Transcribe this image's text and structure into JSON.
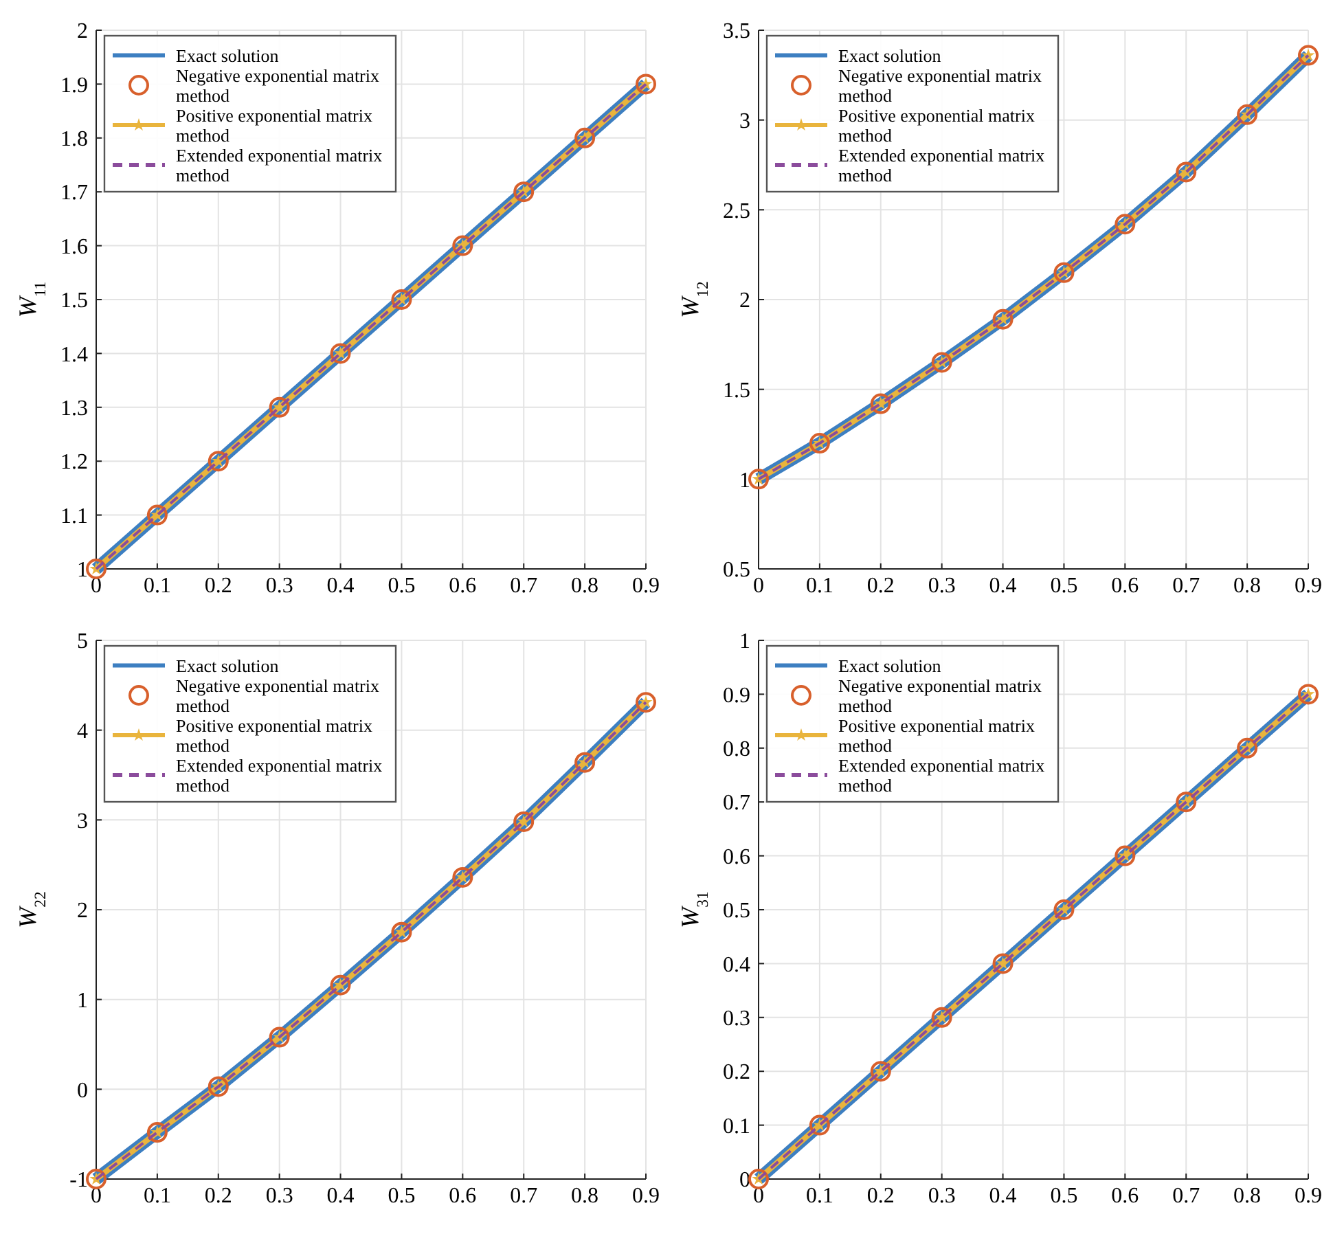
{
  "chart_data": [
    {
      "type": "line",
      "ylabel": "W$_{11}$",
      "x": [
        0,
        0.1,
        0.2,
        0.3,
        0.4,
        0.5,
        0.6,
        0.7,
        0.8,
        0.9
      ],
      "xlim": [
        0,
        0.9
      ],
      "xticks": [
        0,
        0.1,
        0.2,
        0.3,
        0.4,
        0.5,
        0.6,
        0.7,
        0.8,
        0.9
      ],
      "ylim": [
        1,
        2
      ],
      "yticks": [
        1,
        1.1,
        1.2,
        1.3,
        1.4,
        1.5,
        1.6,
        1.7,
        1.8,
        1.9,
        2
      ],
      "grid": true,
      "legend": "top left",
      "series": [
        {
          "name": "Exact solution",
          "color": "#3d7fc1",
          "line_style": "solid",
          "marker": "none",
          "values": [
            1,
            1.1,
            1.2,
            1.3,
            1.4,
            1.5,
            1.6,
            1.7,
            1.8,
            1.9
          ]
        },
        {
          "name": "Negative exponential matrix method",
          "type": "scatter",
          "color": "#d8602c",
          "marker": "circle",
          "values": [
            1,
            1.1,
            1.2,
            1.3,
            1.4,
            1.5,
            1.6,
            1.7,
            1.8,
            1.9
          ]
        },
        {
          "name": "Positive exponential matrix method",
          "type": "line",
          "color": "#e9b43c",
          "line_style": "solid",
          "marker": "star",
          "values": [
            1,
            1.1,
            1.2,
            1.3,
            1.4,
            1.5,
            1.6,
            1.7,
            1.8,
            1.9
          ]
        },
        {
          "name": "Extended exponential matrix method",
          "type": "line",
          "color": "#8b4c9c",
          "line_style": "dashed",
          "marker": "none",
          "values": [
            1,
            1.1,
            1.2,
            1.3,
            1.4,
            1.5,
            1.6,
            1.7,
            1.8,
            1.9
          ]
        }
      ]
    },
    {
      "type": "line",
      "ylabel": "W$_{12}$",
      "x": [
        0,
        0.1,
        0.2,
        0.3,
        0.4,
        0.5,
        0.6,
        0.7,
        0.8,
        0.9
      ],
      "xlim": [
        0,
        0.9
      ],
      "xticks": [
        0,
        0.1,
        0.2,
        0.3,
        0.4,
        0.5,
        0.6,
        0.7,
        0.8,
        0.9
      ],
      "ylim": [
        0.5,
        3.5
      ],
      "yticks": [
        0.5,
        1,
        1.5,
        2,
        2.5,
        3,
        3.5
      ],
      "grid": true,
      "legend": "top left",
      "series": [
        {
          "name": "Exact solution",
          "color": "#3d7fc1",
          "line_style": "solid",
          "marker": "none",
          "values": [
            1,
            1.2,
            1.42,
            1.65,
            1.89,
            2.15,
            2.42,
            2.71,
            3.03,
            3.36
          ]
        },
        {
          "name": "Negative exponential matrix method",
          "type": "scatter",
          "color": "#d8602c",
          "marker": "circle",
          "values": [
            1,
            1.2,
            1.42,
            1.65,
            1.89,
            2.15,
            2.42,
            2.71,
            3.03,
            3.36
          ]
        },
        {
          "name": "Positive exponential matrix method",
          "type": "line",
          "color": "#e9b43c",
          "line_style": "solid",
          "marker": "star",
          "values": [
            1,
            1.2,
            1.42,
            1.65,
            1.89,
            2.15,
            2.42,
            2.71,
            3.03,
            3.36
          ]
        },
        {
          "name": "Extended exponential matrix method",
          "type": "line",
          "color": "#8b4c9c",
          "line_style": "dashed",
          "marker": "none",
          "values": [
            1,
            1.2,
            1.42,
            1.65,
            1.89,
            2.15,
            2.42,
            2.71,
            3.03,
            3.36
          ]
        }
      ]
    },
    {
      "type": "line",
      "ylabel": "W$_{22}$",
      "x": [
        0,
        0.1,
        0.2,
        0.3,
        0.4,
        0.5,
        0.6,
        0.7,
        0.8,
        0.9
      ],
      "xlim": [
        0,
        0.9
      ],
      "xticks": [
        0,
        0.1,
        0.2,
        0.3,
        0.4,
        0.5,
        0.6,
        0.7,
        0.8,
        0.9
      ],
      "ylim": [
        -1,
        5
      ],
      "yticks": [
        -1,
        0,
        1,
        2,
        3,
        4,
        5
      ],
      "grid": true,
      "legend": "top left",
      "series": [
        {
          "name": "Exact solution",
          "color": "#3d7fc1",
          "line_style": "solid",
          "marker": "none",
          "values": [
            -1,
            -0.48,
            0.03,
            0.58,
            1.16,
            1.75,
            2.36,
            2.98,
            3.64,
            4.31
          ]
        },
        {
          "name": "Negative exponential matrix method",
          "type": "scatter",
          "color": "#d8602c",
          "marker": "circle",
          "values": [
            -1,
            -0.48,
            0.03,
            0.58,
            1.16,
            1.75,
            2.36,
            2.98,
            3.64,
            4.31
          ]
        },
        {
          "name": "Positive exponential matrix method",
          "type": "line",
          "color": "#e9b43c",
          "line_style": "solid",
          "marker": "star",
          "values": [
            -1,
            -0.48,
            0.03,
            0.58,
            1.16,
            1.75,
            2.36,
            2.98,
            3.64,
            4.31
          ]
        },
        {
          "name": "Extended exponential matrix method",
          "type": "line",
          "color": "#8b4c9c",
          "line_style": "dashed",
          "marker": "none",
          "values": [
            -1,
            -0.48,
            0.03,
            0.58,
            1.16,
            1.75,
            2.36,
            2.98,
            3.64,
            4.31
          ]
        }
      ]
    },
    {
      "type": "line",
      "ylabel": "W$_{31}$",
      "x": [
        0,
        0.1,
        0.2,
        0.3,
        0.4,
        0.5,
        0.6,
        0.7,
        0.8,
        0.9
      ],
      "xlim": [
        0,
        0.9
      ],
      "xticks": [
        0,
        0.1,
        0.2,
        0.3,
        0.4,
        0.5,
        0.6,
        0.7,
        0.8,
        0.9
      ],
      "ylim": [
        0,
        1
      ],
      "yticks": [
        0,
        0.1,
        0.2,
        0.3,
        0.4,
        0.5,
        0.6,
        0.7,
        0.8,
        0.9,
        1
      ],
      "grid": true,
      "legend": "top left",
      "series": [
        {
          "name": "Exact solution",
          "color": "#3d7fc1",
          "line_style": "solid",
          "marker": "none",
          "values": [
            0,
            0.1,
            0.2,
            0.3,
            0.4,
            0.5,
            0.6,
            0.7,
            0.8,
            0.9
          ]
        },
        {
          "name": "Negative exponential matrix method",
          "type": "scatter",
          "color": "#d8602c",
          "marker": "circle",
          "values": [
            0,
            0.1,
            0.2,
            0.3,
            0.4,
            0.5,
            0.6,
            0.7,
            0.8,
            0.9
          ]
        },
        {
          "name": "Positive exponential matrix method",
          "type": "line",
          "color": "#e9b43c",
          "line_style": "solid",
          "marker": "star",
          "values": [
            0,
            0.1,
            0.2,
            0.3,
            0.4,
            0.5,
            0.6,
            0.7,
            0.8,
            0.9
          ]
        },
        {
          "name": "Extended exponential matrix method",
          "type": "line",
          "color": "#8b4c9c",
          "line_style": "dashed",
          "marker": "none",
          "values": [
            0,
            0.1,
            0.2,
            0.3,
            0.4,
            0.5,
            0.6,
            0.7,
            0.8,
            0.9
          ]
        }
      ]
    }
  ]
}
